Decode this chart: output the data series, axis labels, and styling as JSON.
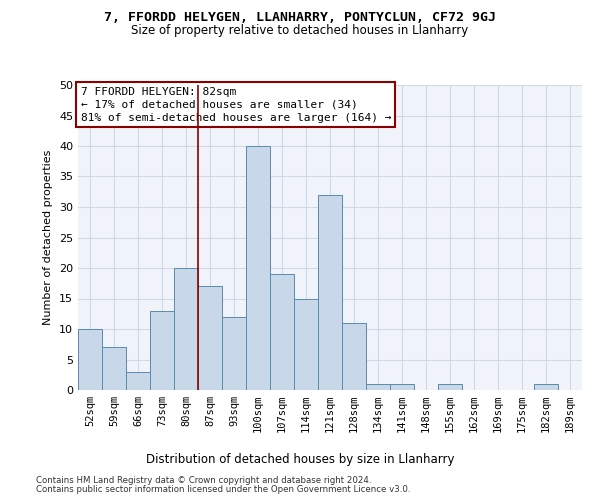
{
  "title": "7, FFORDD HELYGEN, LLANHARRY, PONTYCLUN, CF72 9GJ",
  "subtitle": "Size of property relative to detached houses in Llanharry",
  "xlabel": "Distribution of detached houses by size in Llanharry",
  "ylabel": "Number of detached properties",
  "categories": [
    "52sqm",
    "59sqm",
    "66sqm",
    "73sqm",
    "80sqm",
    "87sqm",
    "93sqm",
    "100sqm",
    "107sqm",
    "114sqm",
    "121sqm",
    "128sqm",
    "134sqm",
    "141sqm",
    "148sqm",
    "155sqm",
    "162sqm",
    "169sqm",
    "175sqm",
    "182sqm",
    "189sqm"
  ],
  "values": [
    10,
    7,
    3,
    13,
    20,
    17,
    12,
    40,
    19,
    15,
    32,
    11,
    1,
    1,
    0,
    1,
    0,
    0,
    0,
    1,
    0
  ],
  "bar_color": "#c8d8e8",
  "bar_edge_color": "#5a8ab0",
  "vline_x": 4.5,
  "vline_color": "#8b0000",
  "annotation_box_text": "7 FFORDD HELYGEN: 82sqm\n← 17% of detached houses are smaller (34)\n81% of semi-detached houses are larger (164) →",
  "annotation_box_color": "#8b0000",
  "ylim": [
    0,
    50
  ],
  "yticks": [
    0,
    5,
    10,
    15,
    20,
    25,
    30,
    35,
    40,
    45,
    50
  ],
  "grid_color": "#d0d8e8",
  "bg_color": "#f0f4fa",
  "footer1": "Contains HM Land Registry data © Crown copyright and database right 2024.",
  "footer2": "Contains public sector information licensed under the Open Government Licence v3.0."
}
